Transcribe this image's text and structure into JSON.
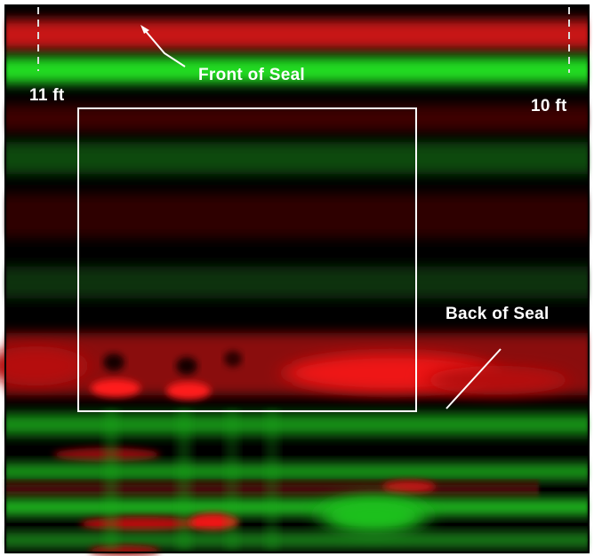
{
  "labels": {
    "front_of_seal": "Front of Seal",
    "back_of_seal": "Back of Seal",
    "left_distance": "11 ft",
    "right_distance": "10 ft"
  },
  "colors": {
    "positive_reflection": "#ff1010",
    "negative_reflection": "#10ff10",
    "background": "#000000",
    "annotation": "#ffffff"
  }
}
